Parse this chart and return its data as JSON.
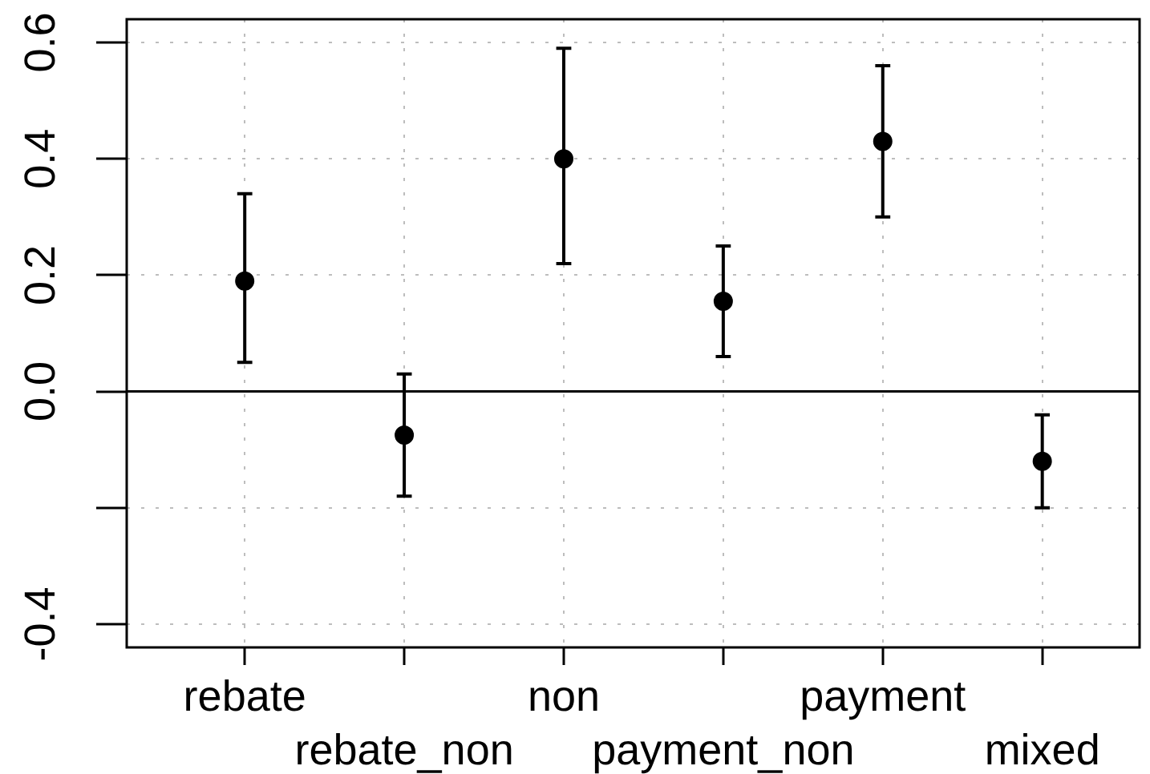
{
  "chart_data": {
    "type": "scatter",
    "categories": [
      "rebate",
      "rebate_non",
      "non",
      "payment_non",
      "payment",
      "mixed"
    ],
    "values": [
      0.19,
      -0.075,
      0.4,
      0.155,
      0.43,
      -0.12
    ],
    "errors": [
      [
        0.05,
        0.34
      ],
      [
        -0.18,
        0.03
      ],
      [
        0.22,
        0.59
      ],
      [
        0.06,
        0.25
      ],
      [
        0.3,
        0.56
      ],
      [
        -0.2,
        -0.04
      ]
    ],
    "color": "#000000",
    "marker": "circle",
    "ylim": [
      -0.44,
      0.64
    ],
    "yticks": [
      -0.4,
      {
        "value": -0.2,
        "label": null
      },
      {
        "value": 0,
        "label": "0.0"
      },
      0.2,
      0.4,
      0.6
    ],
    "grid": true,
    "ref_lines": [
      {
        "axis": "y",
        "value": 0,
        "color": "#000000"
      }
    ]
  }
}
